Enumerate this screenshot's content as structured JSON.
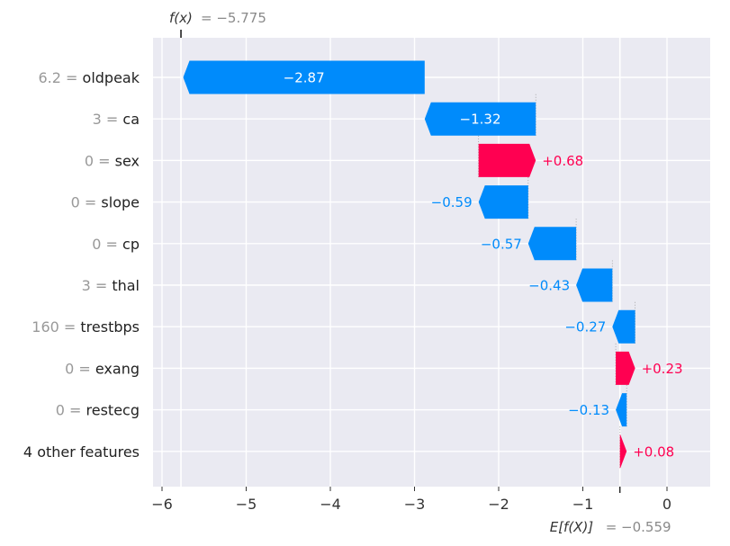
{
  "chart_data": {
    "type": "waterfall",
    "fx": {
      "label": "f(x)",
      "value": -5.775,
      "value_text": "= −5.775"
    },
    "base": {
      "label": "E[f(X)]",
      "value": -0.559,
      "value_text": "= −0.559"
    },
    "features": [
      {
        "value": "6.2",
        "name": "oldpeak",
        "contribution": -2.87,
        "label": "−2.87"
      },
      {
        "value": "3",
        "name": "ca",
        "contribution": -1.32,
        "label": "−1.32"
      },
      {
        "value": "0",
        "name": "sex",
        "contribution": 0.68,
        "label": "+0.68"
      },
      {
        "value": "0",
        "name": "slope",
        "contribution": -0.59,
        "label": "−0.59"
      },
      {
        "value": "0",
        "name": "cp",
        "contribution": -0.57,
        "label": "−0.57"
      },
      {
        "value": "3",
        "name": "thal",
        "contribution": -0.43,
        "label": "−0.43"
      },
      {
        "value": "160",
        "name": "trestbps",
        "contribution": -0.27,
        "label": "−0.27"
      },
      {
        "value": "0",
        "name": "exang",
        "contribution": 0.23,
        "label": "+0.23"
      },
      {
        "value": "0",
        "name": "restecg",
        "contribution": -0.13,
        "label": "−0.13"
      },
      {
        "value": "",
        "name": "4 other features",
        "contribution": 0.08,
        "label": "+0.08"
      }
    ],
    "x_ticks": [
      -6,
      -5,
      -4,
      -3,
      -2,
      -1,
      0
    ],
    "x_tick_labels": [
      "−6",
      "−5",
      "−4",
      "−3",
      "−2",
      "−1",
      "0"
    ],
    "xlim": [
      -6.1,
      0.5
    ],
    "grid": true,
    "colors": {
      "negative": "#008bfb",
      "positive": "#ff0051",
      "background": "#eaeaf2",
      "grid": "#ffffff"
    }
  }
}
